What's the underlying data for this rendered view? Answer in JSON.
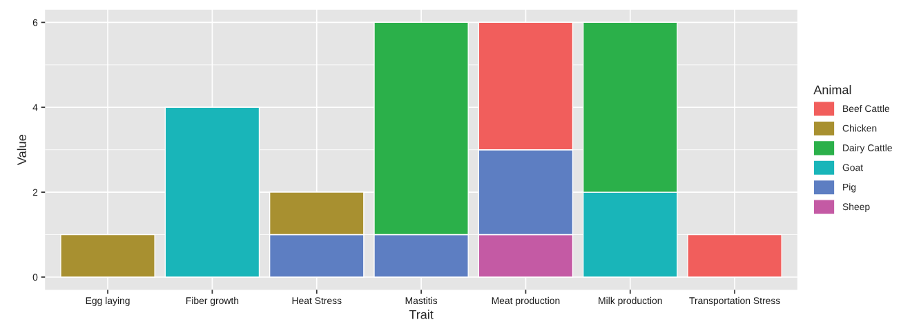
{
  "chart_data": {
    "type": "bar",
    "stacked": true,
    "xlabel": "Trait",
    "ylabel": "Value",
    "legend_title": "Animal",
    "legend": "right",
    "grid": true,
    "categories": [
      "Egg laying",
      "Fiber growth",
      "Heat Stress",
      "Mastitis",
      "Meat production",
      "Milk production",
      "Transportation Stress"
    ],
    "ylim": [
      -0.3,
      6.3
    ],
    "yticks": [
      0,
      2,
      4,
      6
    ],
    "series": [
      {
        "name": "Sheep",
        "color": "#c45aa4",
        "values": [
          null,
          null,
          null,
          null,
          1,
          null,
          null
        ]
      },
      {
        "name": "Pig",
        "color": "#5d7ec2",
        "values": [
          null,
          null,
          1,
          1,
          2,
          null,
          null
        ]
      },
      {
        "name": "Goat",
        "color": "#19b5b9",
        "values": [
          null,
          4,
          null,
          null,
          null,
          2,
          null
        ]
      },
      {
        "name": "Dairy Cattle",
        "color": "#2bb04a",
        "values": [
          null,
          null,
          null,
          5,
          null,
          4,
          null
        ]
      },
      {
        "name": "Chicken",
        "color": "#a89030",
        "values": [
          1,
          null,
          1,
          null,
          null,
          null,
          null
        ]
      },
      {
        "name": "Beef Cattle",
        "color": "#f15e5c",
        "values": [
          null,
          null,
          null,
          null,
          3,
          null,
          1
        ]
      }
    ]
  }
}
